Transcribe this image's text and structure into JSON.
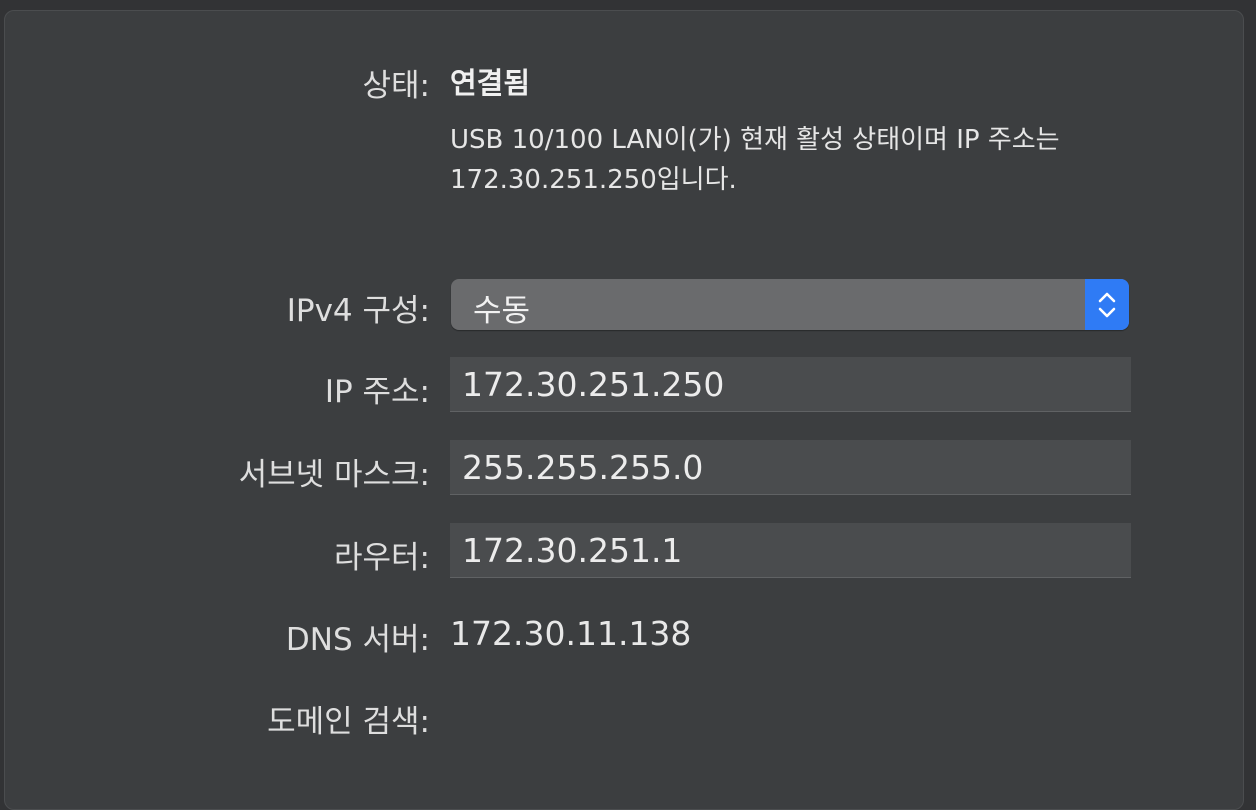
{
  "status": {
    "label": "상태:",
    "value": "연결됨",
    "description": "USB 10/100 LAN이(가) 현재 활성 상태이며 IP 주소는 172.30.251.250입니다."
  },
  "ipv4_config": {
    "label": "IPv4 구성:",
    "selected": "수동"
  },
  "ip_address": {
    "label": "IP 주소:",
    "value": "172.30.251.250"
  },
  "subnet_mask": {
    "label": "서브넷 마스크:",
    "value": "255.255.255.0"
  },
  "router": {
    "label": "라우터:",
    "value": "172.30.251.1"
  },
  "dns_server": {
    "label": "DNS 서버:",
    "value": "172.30.11.138"
  },
  "search_domains": {
    "label": "도메인 검색:",
    "value": ""
  },
  "colors": {
    "accent": "#2f7bf5",
    "panel": "#3c3e40",
    "field": "#4a4c4e"
  }
}
